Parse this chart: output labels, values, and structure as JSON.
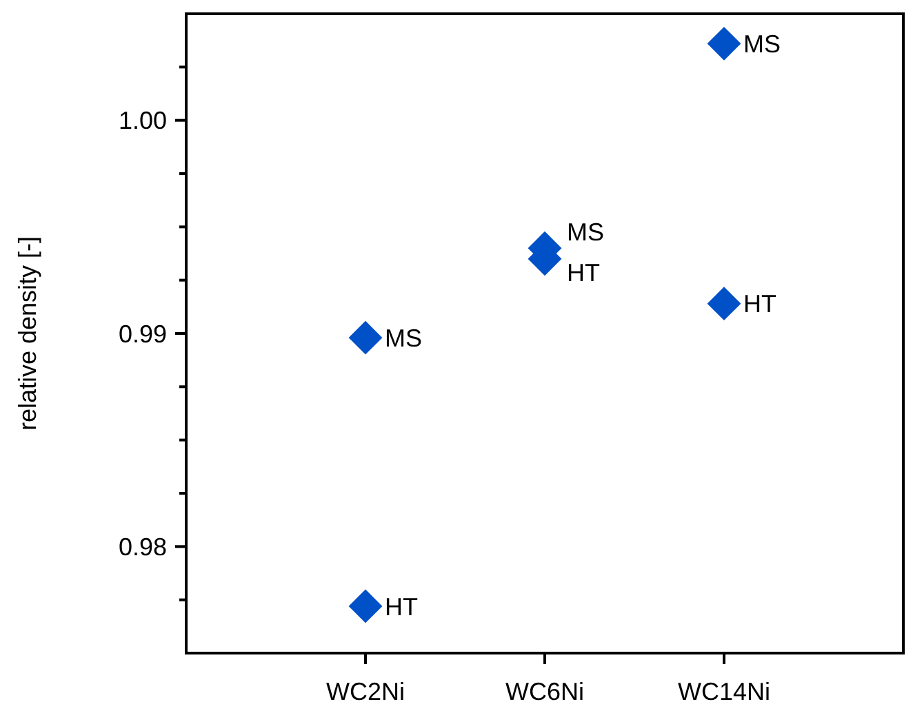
{
  "chart_data": {
    "type": "scatter",
    "ylabel": "relative density [-]",
    "categories": [
      "WC2Ni",
      "WC6Ni",
      "WC14Ni"
    ],
    "series": [
      {
        "name": "MS",
        "color": "#0050c8",
        "values": [
          0.9898,
          0.994,
          1.0036
        ]
      },
      {
        "name": "HT",
        "color": "#0050c8",
        "values": [
          0.9772,
          0.9935,
          0.9914
        ]
      }
    ],
    "marker": "diamond",
    "grid": false,
    "legend": false,
    "ylim": [
      0.975,
      1.005
    ],
    "yticks": [
      {
        "value": 0.9775,
        "label": null
      },
      0.98,
      {
        "value": 0.9825,
        "label": null
      },
      {
        "value": 0.985,
        "label": null
      },
      {
        "value": 0.9875,
        "label": null
      },
      0.99,
      {
        "value": 0.9925,
        "label": null
      },
      {
        "value": 0.995,
        "label": null
      },
      {
        "value": 0.9975,
        "label": null
      },
      {
        "value": 1.0,
        "label": "1.00"
      },
      {
        "value": 1.0025,
        "label": null
      }
    ]
  }
}
